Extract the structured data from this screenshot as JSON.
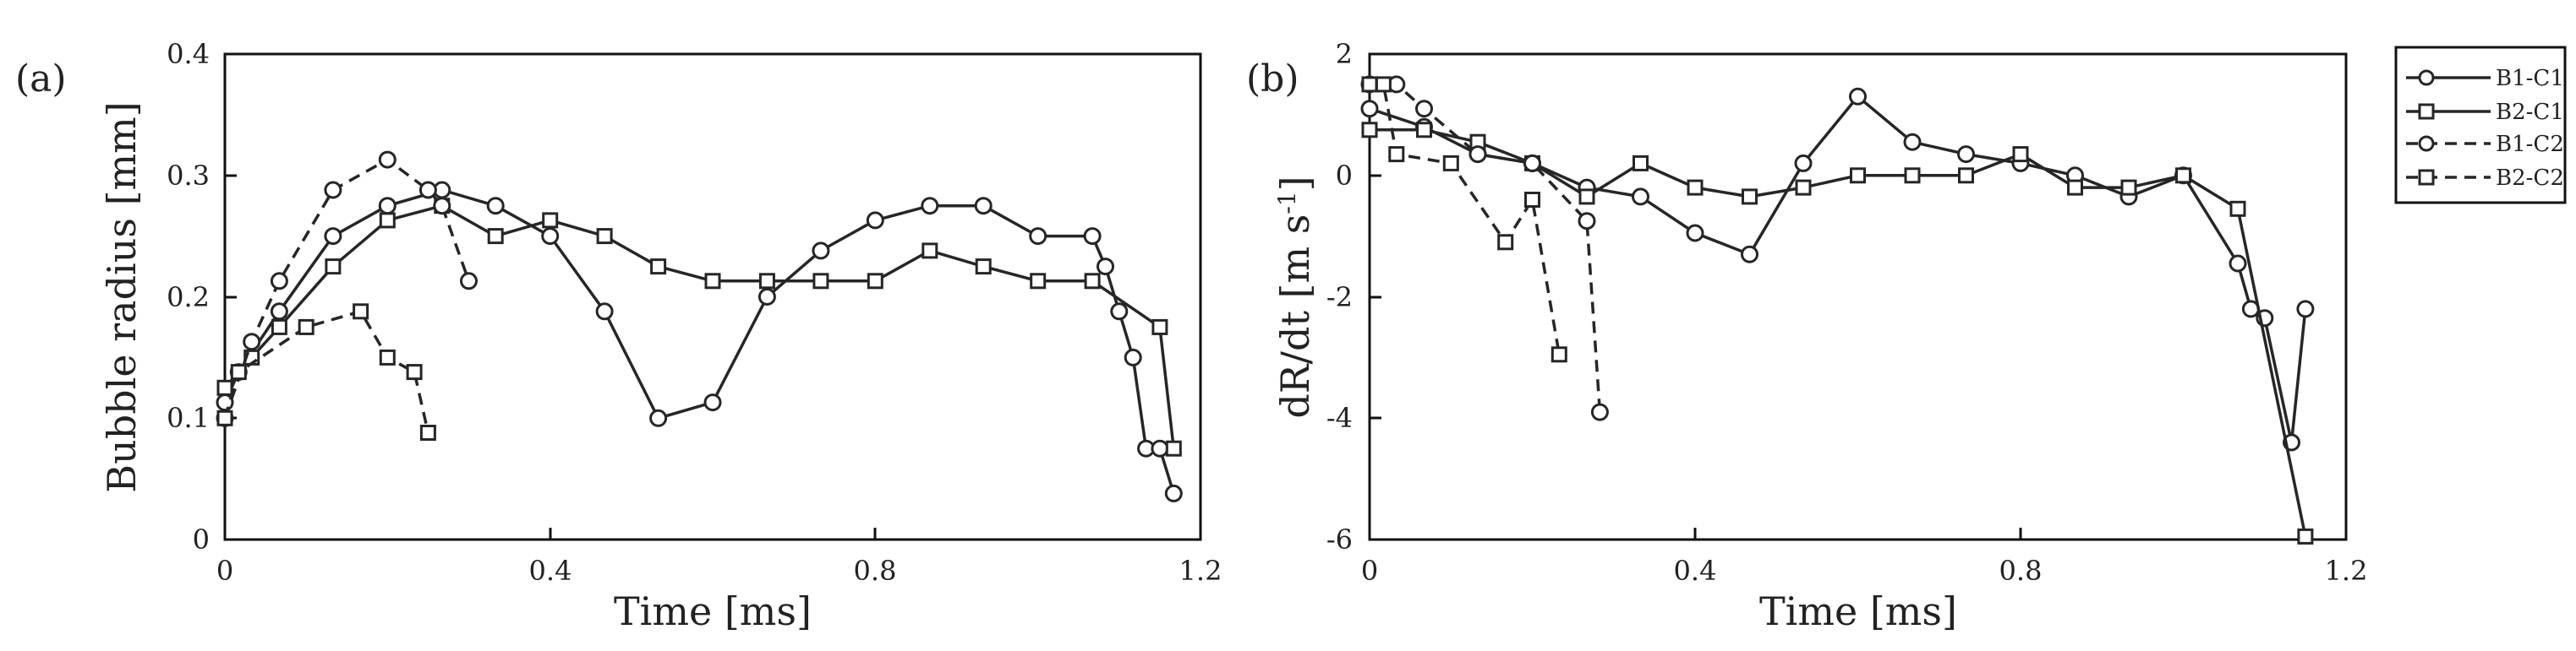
{
  "panels": [
    {
      "panel_label": "(a)",
      "xlabel": "Time [ms]",
      "ylabel": "Bubble radius [mm]",
      "xlim": [
        0,
        1.2
      ],
      "ylim": [
        0,
        0.4
      ],
      "x_tick_labels": [
        "0",
        "0.4",
        "0.8",
        "1.2"
      ],
      "y_tick_labels": [
        "0",
        "0.1",
        "0.2",
        "0.3",
        "0.4"
      ]
    },
    {
      "panel_label": "(b)",
      "xlabel": "Time [ms]",
      "ylabel": "dR/dt [m s",
      "ylabel_superscript": "-1",
      "ylabel_suffix": "]",
      "xlim": [
        0,
        1.2
      ],
      "ylim": [
        -6,
        2
      ],
      "x_tick_labels": [
        "0",
        "0.4",
        "0.8",
        "1.2"
      ],
      "y_tick_labels": [
        "-6",
        "-4",
        "-2",
        "0",
        "2"
      ]
    }
  ],
  "legend": {
    "placement": "outside-right-top",
    "entries": [
      "B1-C1",
      "B2-C1",
      "B1-C2",
      "B2-C2"
    ]
  },
  "colors": {
    "line": "#262626",
    "axis": "#111111",
    "background": "#ffffff"
  },
  "chart_data": [
    {
      "type": "line",
      "title": "(a)",
      "xlabel": "Time [ms]",
      "ylabel": "Bubble radius [mm]",
      "xlim": [
        0,
        1.2
      ],
      "ylim": [
        0,
        0.4
      ],
      "grid": false,
      "series": [
        {
          "name": "B1-C1",
          "marker": "circle",
          "linestyle": "solid",
          "x": [
            0,
            0.017,
            0.067,
            0.133,
            0.2,
            0.267,
            0.333,
            0.4,
            0.467,
            0.533,
            0.6,
            0.667,
            0.733,
            0.8,
            0.867,
            0.933,
            1.0,
            1.067,
            1.083,
            1.1,
            1.117,
            1.133,
            1.15,
            1.167
          ],
          "y": [
            0.113,
            0.138,
            0.188,
            0.25,
            0.275,
            0.288,
            0.275,
            0.25,
            0.188,
            0.1,
            0.113,
            0.2,
            0.238,
            0.263,
            0.275,
            0.275,
            0.25,
            0.25,
            0.225,
            0.188,
            0.15,
            0.075,
            0.075,
            0.038
          ]
        },
        {
          "name": "B2-C1",
          "marker": "square",
          "linestyle": "solid",
          "x": [
            0,
            0.033,
            0.067,
            0.133,
            0.2,
            0.267,
            0.333,
            0.4,
            0.467,
            0.533,
            0.6,
            0.667,
            0.733,
            0.8,
            0.867,
            0.933,
            1.0,
            1.067,
            1.15,
            1.167
          ],
          "y": [
            0.125,
            0.15,
            0.175,
            0.225,
            0.263,
            0.275,
            0.25,
            0.263,
            0.25,
            0.225,
            0.213,
            0.213,
            0.213,
            0.213,
            0.238,
            0.225,
            0.213,
            0.213,
            0.175,
            0.075
          ]
        },
        {
          "name": "B1-C2",
          "marker": "circle",
          "linestyle": "dashed",
          "x": [
            0,
            0.033,
            0.067,
            0.133,
            0.2,
            0.25,
            0.267,
            0.3
          ],
          "y": [
            0.1,
            0.163,
            0.213,
            0.288,
            0.313,
            0.288,
            0.275,
            0.213
          ]
        },
        {
          "name": "B2-C2",
          "marker": "square",
          "linestyle": "dashed",
          "x": [
            0,
            0.017,
            0.1,
            0.167,
            0.2,
            0.233,
            0.25
          ],
          "y": [
            0.1,
            0.138,
            0.175,
            0.188,
            0.15,
            0.138,
            0.088
          ]
        }
      ]
    },
    {
      "type": "line",
      "title": "(b)",
      "xlabel": "Time [ms]",
      "ylabel": "dR/dt [m s-1]",
      "xlim": [
        0,
        1.2
      ],
      "ylim": [
        -6,
        2
      ],
      "grid": false,
      "series": [
        {
          "name": "B1-C1",
          "marker": "circle",
          "linestyle": "solid",
          "x": [
            0,
            0.067,
            0.133,
            0.2,
            0.267,
            0.333,
            0.4,
            0.467,
            0.533,
            0.6,
            0.667,
            0.733,
            0.8,
            0.867,
            0.933,
            1.0,
            1.067,
            1.083,
            1.1,
            1.133,
            1.15
          ],
          "y": [
            1.1,
            0.8,
            0.35,
            0.2,
            -0.2,
            -0.35,
            -0.95,
            -1.3,
            0.2,
            1.3,
            0.55,
            0.35,
            0.2,
            0.0,
            -0.35,
            0.0,
            -1.45,
            -2.2,
            -2.35,
            -4.4,
            -2.2
          ]
        },
        {
          "name": "B2-C1",
          "marker": "square",
          "linestyle": "solid",
          "x": [
            0,
            0.067,
            0.133,
            0.2,
            0.267,
            0.333,
            0.4,
            0.467,
            0.533,
            0.6,
            0.667,
            0.733,
            0.8,
            0.867,
            0.933,
            1.0,
            1.067,
            1.15
          ],
          "y": [
            0.75,
            0.75,
            0.55,
            0.2,
            -0.35,
            0.2,
            -0.2,
            -0.35,
            -0.2,
            0.0,
            0.0,
            0.0,
            0.35,
            -0.2,
            -0.2,
            0.0,
            -0.55,
            -5.95
          ]
        },
        {
          "name": "B1-C2",
          "marker": "circle",
          "linestyle": "dashed",
          "x": [
            0,
            0.033,
            0.067,
            0.133,
            0.2,
            0.267,
            0.283
          ],
          "y": [
            1.5,
            1.5,
            1.1,
            0.35,
            0.2,
            -0.75,
            -3.9
          ]
        },
        {
          "name": "B2-C2",
          "marker": "square",
          "linestyle": "dashed",
          "x": [
            0,
            0.017,
            0.033,
            0.1,
            0.167,
            0.2,
            0.233
          ],
          "y": [
            1.5,
            1.5,
            0.35,
            0.2,
            -1.1,
            -0.4,
            -2.95
          ]
        }
      ]
    }
  ]
}
